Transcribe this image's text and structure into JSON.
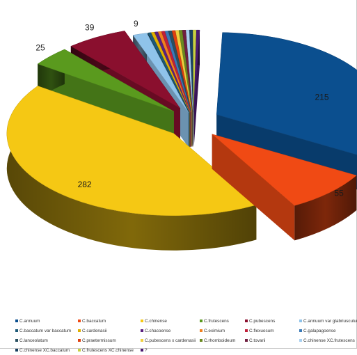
{
  "chart_data": {
    "type": "pie",
    "style": "3d-exploded",
    "title": "",
    "slices": [
      {
        "label": "C.annuum",
        "value": 215,
        "color": "#0b4f8f",
        "data_label": "215"
      },
      {
        "label": "C.baccatum",
        "value": 55,
        "color": "#f04a14",
        "data_label": "55"
      },
      {
        "label": "C.chinense",
        "value": 282,
        "color": "#f5c814",
        "data_label": "282"
      },
      {
        "label": "C.frutescens",
        "value": 25,
        "color": "#5a9a1e",
        "data_label": "25"
      },
      {
        "label": "C.pubescens",
        "value": 39,
        "color": "#8a0f2e",
        "data_label": "39"
      },
      {
        "label": "C.annuum var glabriusculum",
        "value": 9,
        "color": "#8fc3ea",
        "data_label": "9"
      },
      {
        "label": "C.baccatum var baccatum",
        "value": 2,
        "color": "#1e5a78",
        "data_label": ""
      },
      {
        "label": "C.cardenasii",
        "value": 2,
        "color": "#e0b000",
        "data_label": ""
      },
      {
        "label": "C.chacoense",
        "value": 2,
        "color": "#5a2080",
        "data_label": ""
      },
      {
        "label": "C.eximium",
        "value": 2,
        "color": "#f08020",
        "data_label": ""
      },
      {
        "label": "C.flexuosum",
        "value": 2,
        "color": "#c0203a",
        "data_label": ""
      },
      {
        "label": "C.galapagoense",
        "value": 2,
        "color": "#3a7ab8",
        "data_label": ""
      },
      {
        "label": "C.lanceolatum",
        "value": 2,
        "color": "#2a5060",
        "data_label": ""
      },
      {
        "label": "C.praetermissum",
        "value": 2,
        "color": "#e04010",
        "data_label": ""
      },
      {
        "label": "C.pubescens x cardenasii",
        "value": 2,
        "color": "#f0d040",
        "data_label": ""
      },
      {
        "label": "C.rhomboideum",
        "value": 2,
        "color": "#6a8a20",
        "data_label": ""
      },
      {
        "label": "C.tovarii",
        "value": 2,
        "color": "#702040",
        "data_label": ""
      },
      {
        "label": "C.chinense XC.frutescens",
        "value": 2,
        "color": "#a8d0f0",
        "data_label": ""
      },
      {
        "label": "C.chinense XC.baccatum",
        "value": 2,
        "color": "#184060",
        "data_label": ""
      },
      {
        "label": "C.frutescens XC.chinense",
        "value": 2,
        "color": "#c8d040",
        "data_label": ""
      },
      {
        "label": "?",
        "value": 2,
        "color": "#4a1a70",
        "data_label": ""
      }
    ],
    "legend": {
      "placement": "bottom",
      "rows": [
        [
          "C.annuum",
          "C.baccatum",
          "C.chinense",
          "C.frutescens",
          "C.pubescens",
          "C.annuum var glabriusculum"
        ],
        [
          "C.baccatum var baccatum",
          "C.cardenasii",
          "C.chacoense",
          "C.eximium",
          "C.flexuosum",
          "C.galapagoense"
        ],
        [
          "C.lanceolatum",
          "C.praetermissum",
          "C.pubescens x cardenasii",
          "C.rhomboideum",
          "C.tovarii",
          "C.chinense XC.frutescens"
        ],
        [
          "C.chinense XC.baccatum",
          "C.frutescens XC.chinense",
          "?"
        ]
      ]
    }
  }
}
